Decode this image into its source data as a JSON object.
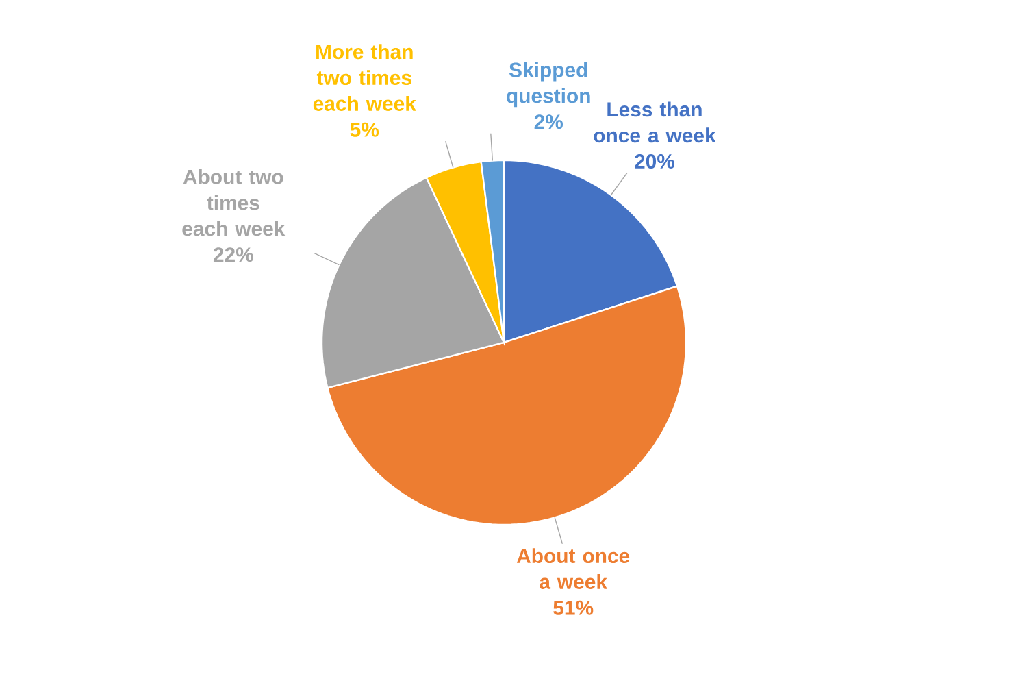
{
  "chart_data": {
    "type": "pie",
    "categories": [
      "Less than once a week",
      "About once a week",
      "About two times each week",
      "More than two times each week",
      "Skipped question"
    ],
    "values": [
      20,
      51,
      22,
      5,
      2
    ],
    "colors": [
      "#4472c4",
      "#ed7d31",
      "#a5a5a5",
      "#ffc000",
      "#5b9bd5"
    ],
    "value_labels": [
      "20%",
      "51%",
      "22%",
      "5%",
      "2%"
    ]
  }
}
